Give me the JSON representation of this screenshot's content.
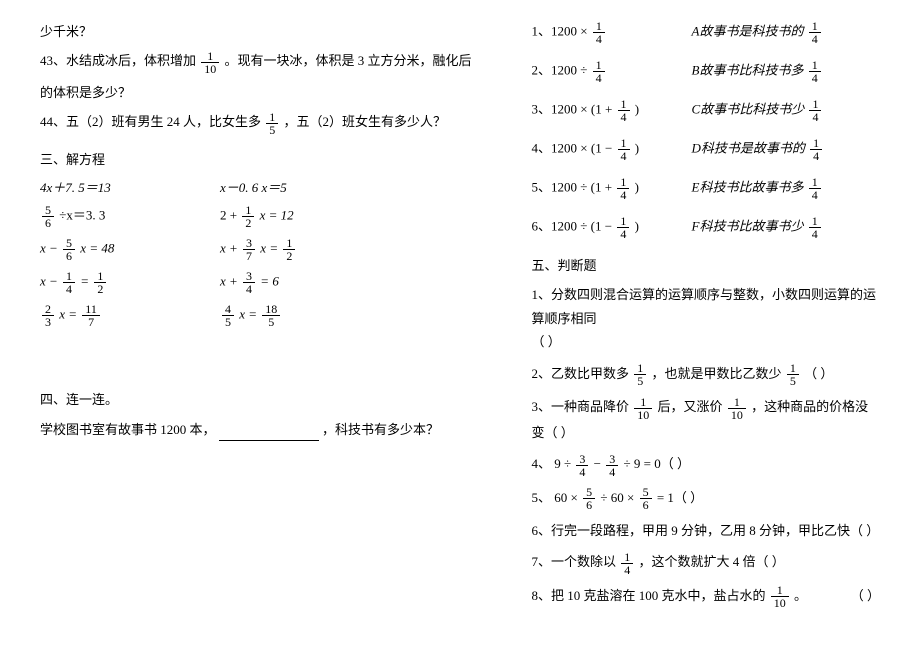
{
  "left": {
    "q42_tail": "少千米？",
    "q43_a": "43、水结成冰后，体积增加",
    "q43_frac": {
      "n": "1",
      "d": "10"
    },
    "q43_b": "。现有一块冰，体积是 3 立方分米，融化后",
    "q43_c": "的体积是多少？",
    "q44_a": "44、五（2）班有男生 24 人，比女生多",
    "q44_frac": {
      "n": "1",
      "d": "5"
    },
    "q44_b": "，五（2）班女生有多少人？",
    "sec3": "三、解方程",
    "eq1a": "4x＋7. 5＝13",
    "eq1b": "x－0. 6 x＝5",
    "eq2a_frac": {
      "n": "5",
      "d": "6"
    },
    "eq2a_rest": "÷x＝3. 3",
    "eq2b_a": "2 +",
    "eq2b_frac": {
      "n": "1",
      "d": "2"
    },
    "eq2b_b": "x = 12",
    "eq3a_a": "x −",
    "eq3a_frac": {
      "n": "5",
      "d": "6"
    },
    "eq3a_b": "x = 48",
    "eq3b_a": "x +",
    "eq3b_frac1": {
      "n": "3",
      "d": "7"
    },
    "eq3b_b": "x =",
    "eq3b_frac2": {
      "n": "1",
      "d": "2"
    },
    "eq4a_a": "x −",
    "eq4a_frac1": {
      "n": "1",
      "d": "4"
    },
    "eq4a_b": "=",
    "eq4a_frac2": {
      "n": "1",
      "d": "2"
    },
    "eq4b_a": "x +",
    "eq4b_frac": {
      "n": "3",
      "d": "4"
    },
    "eq4b_b": "= 6",
    "eq5a_frac1": {
      "n": "2",
      "d": "3"
    },
    "eq5a_a": "x =",
    "eq5a_frac2": {
      "n": "11",
      "d": "7"
    },
    "eq5b_frac1": {
      "n": "4",
      "d": "5"
    },
    "eq5b_a": "x =",
    "eq5b_frac2": {
      "n": "18",
      "d": "5"
    },
    "sec4": "四、连一连。",
    "sec4_q": "学校图书室有故事书 1200 本，",
    "sec4_q2": "，科技书有多少本？"
  },
  "right": {
    "m1_left_a": "1、1200 ×",
    "m1_frac": {
      "n": "1",
      "d": "4"
    },
    "m1_right_a": "A故事书是科技书的",
    "m1_right_frac": {
      "n": "1",
      "d": "4"
    },
    "m2_left_a": "2、1200 ÷",
    "m2_frac": {
      "n": "1",
      "d": "4"
    },
    "m2_right_a": "B故事书比科技书多",
    "m2_right_frac": {
      "n": "1",
      "d": "4"
    },
    "m3_left_a": "3、1200 × (1 +",
    "m3_frac": {
      "n": "1",
      "d": "4"
    },
    "m3_left_b": ")",
    "m3_right_a": "C故事书比科技书少",
    "m3_right_frac": {
      "n": "1",
      "d": "4"
    },
    "m4_left_a": "4、1200 × (1 −",
    "m4_frac": {
      "n": "1",
      "d": "4"
    },
    "m4_left_b": ")",
    "m4_right_a": "D科技书是故事书的",
    "m4_right_frac": {
      "n": "1",
      "d": "4"
    },
    "m5_left_a": "5、1200 ÷ (1 +",
    "m5_frac": {
      "n": "1",
      "d": "4"
    },
    "m5_left_b": ")",
    "m5_right_a": "E科技书比故事书多",
    "m5_right_frac": {
      "n": "1",
      "d": "4"
    },
    "m6_left_a": "6、1200 ÷ (1 −",
    "m6_frac": {
      "n": "1",
      "d": "4"
    },
    "m6_left_b": ")",
    "m6_right_a": "F科技书比故事书少",
    "m6_right_frac": {
      "n": "1",
      "d": "4"
    },
    "sec5": "五、判断题",
    "j1": "1、分数四则混合运算的运算顺序与整数，小数四则运算的运算顺序相同",
    "j1b": "（  ）",
    "j2_a": "2、乙数比甲数多",
    "j2_frac1": {
      "n": "1",
      "d": "5"
    },
    "j2_b": "，也就是甲数比乙数少",
    "j2_frac2": {
      "n": "1",
      "d": "5"
    },
    "j2_c": "（  ）",
    "j3_a": "3、一种商品降价",
    "j3_frac1": {
      "n": "1",
      "d": "10"
    },
    "j3_b": "后，又涨价",
    "j3_frac2": {
      "n": "1",
      "d": "10"
    },
    "j3_c": "，这种商品的价格没变（  ）",
    "j4_a": "4、 9 ÷",
    "j4_frac1": {
      "n": "3",
      "d": "4"
    },
    "j4_b": "−",
    "j4_frac2": {
      "n": "3",
      "d": "4"
    },
    "j4_c": "÷ 9 = 0（  ）",
    "j5_a": "5、 60 ×",
    "j5_frac1": {
      "n": "5",
      "d": "6"
    },
    "j5_b": "÷ 60 ×",
    "j5_frac2": {
      "n": "5",
      "d": "6"
    },
    "j5_c": "= 1（  ）",
    "j6": "6、行完一段路程，甲用 9 分钟，乙用 8 分钟，甲比乙快（  ）",
    "j7_a": "7、一个数除以",
    "j7_frac": {
      "n": "1",
      "d": "4"
    },
    "j7_b": "，这个数就扩大 4 倍（  ）",
    "j8_a": "8、把 10 克盐溶在 100 克水中，盐占水的",
    "j8_frac": {
      "n": "1",
      "d": "10"
    },
    "j8_b": "。",
    "j8_c": "（       ）"
  }
}
